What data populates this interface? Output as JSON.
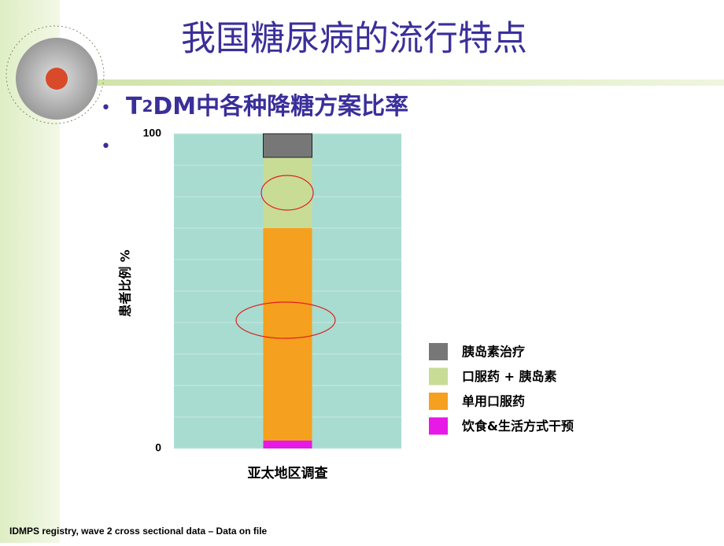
{
  "slide": {
    "title": "我国糖尿病的流行特点",
    "bullet_parts": [
      "T",
      "2",
      "DM中各种降糖方案比率"
    ],
    "footer": "IDMPS registry, wave 2 cross sectional data – Data on file"
  },
  "chart_data": {
    "type": "stacked_bar",
    "categories": [
      "亚太地区调查"
    ],
    "y_label": "患者比例 %",
    "series": [
      {
        "name": "饮食&生活方式干预",
        "color": "#e619e6",
        "values": [
          2.5
        ]
      },
      {
        "name": "单用口服药",
        "color": "#f5a01e",
        "values": [
          67.5
        ]
      },
      {
        "name": "口服药 + 胰岛素",
        "color": "#c8dc96",
        "values": [
          22.5
        ]
      },
      {
        "name": "胰岛素治疗",
        "color": "#777777",
        "values": [
          7.5
        ]
      }
    ],
    "ylim": [
      0,
      100
    ],
    "yticks": [
      0,
      {
        "value": 10,
        "label": null
      },
      {
        "value": 20,
        "label": null
      },
      {
        "value": 30,
        "label": null
      },
      {
        "value": 40,
        "label": null
      },
      {
        "value": 50,
        "label": null
      },
      {
        "value": 60,
        "label": null
      },
      {
        "value": 70,
        "label": null
      },
      {
        "value": 80,
        "label": null
      },
      {
        "value": 90,
        "label": null
      },
      100
    ],
    "grid": true,
    "plot_background": "#a8dcd0"
  }
}
